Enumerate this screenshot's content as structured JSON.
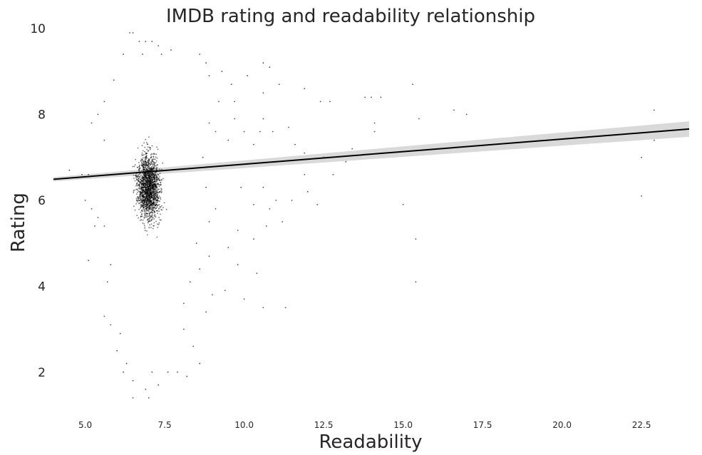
{
  "chart_data": {
    "type": "scatter",
    "title": "IMDB rating and readability relationship",
    "xlabel": "Readability",
    "ylabel": "Rating",
    "xlim": [
      4.0,
      24.0
    ],
    "ylim": [
      1.0,
      10.0
    ],
    "x_ticks": [
      "5.0",
      "7.5",
      "10.0",
      "12.5",
      "15.0",
      "17.5",
      "20.0",
      "22.5"
    ],
    "y_ticks": [
      "2",
      "4",
      "6",
      "8",
      "10"
    ],
    "grid": false,
    "point_color": "#000000",
    "band_color": "#d9d9d9",
    "regression": {
      "x": [
        4.0,
        24.0
      ],
      "y": [
        6.49,
        7.66
      ],
      "ci_half_width": [
        0.05,
        0.18
      ]
    },
    "points": [
      [
        6.4,
        9.9
      ],
      [
        6.5,
        9.9
      ],
      [
        6.7,
        9.7
      ],
      [
        6.9,
        9.7
      ],
      [
        7.1,
        9.7
      ],
      [
        7.3,
        9.6
      ],
      [
        6.2,
        9.4
      ],
      [
        6.8,
        9.4
      ],
      [
        7.4,
        9.4
      ],
      [
        7.7,
        9.5
      ],
      [
        8.6,
        9.4
      ],
      [
        8.8,
        9.2
      ],
      [
        5.9,
        8.8
      ],
      [
        8.9,
        8.9
      ],
      [
        9.3,
        9.0
      ],
      [
        9.6,
        8.7
      ],
      [
        10.1,
        8.9
      ],
      [
        10.6,
        9.2
      ],
      [
        10.8,
        9.1
      ],
      [
        11.1,
        8.7
      ],
      [
        11.9,
        8.6
      ],
      [
        12.7,
        8.3
      ],
      [
        13.8,
        8.4
      ],
      [
        14.0,
        8.4
      ],
      [
        14.3,
        8.4
      ],
      [
        15.3,
        8.7
      ],
      [
        14.1,
        7.8
      ],
      [
        14.1,
        7.6
      ],
      [
        15.5,
        7.9
      ],
      [
        13.4,
        7.2
      ],
      [
        13.2,
        6.9
      ],
      [
        12.5,
        7.0
      ],
      [
        11.9,
        7.1
      ],
      [
        11.6,
        7.3
      ],
      [
        11.4,
        7.7
      ],
      [
        10.9,
        7.6
      ],
      [
        10.6,
        7.9
      ],
      [
        10.5,
        7.6
      ],
      [
        10.3,
        7.3
      ],
      [
        10.0,
        7.6
      ],
      [
        9.7,
        7.9
      ],
      [
        9.5,
        7.4
      ],
      [
        9.1,
        7.6
      ],
      [
        8.9,
        7.8
      ],
      [
        5.4,
        8.0
      ],
      [
        5.2,
        7.8
      ],
      [
        5.6,
        8.3
      ],
      [
        5.6,
        7.4
      ],
      [
        4.5,
        6.7
      ],
      [
        4.9,
        6.6
      ],
      [
        5.1,
        6.6
      ],
      [
        5.0,
        6.0
      ],
      [
        5.2,
        5.8
      ],
      [
        5.4,
        5.6
      ],
      [
        5.3,
        5.4
      ],
      [
        5.6,
        5.4
      ],
      [
        5.1,
        4.6
      ],
      [
        5.8,
        4.5
      ],
      [
        5.7,
        4.1
      ],
      [
        5.6,
        3.3
      ],
      [
        5.8,
        3.1
      ],
      [
        6.1,
        2.9
      ],
      [
        6.0,
        2.5
      ],
      [
        6.3,
        2.2
      ],
      [
        6.2,
        2.0
      ],
      [
        6.5,
        1.8
      ],
      [
        6.9,
        1.6
      ],
      [
        7.0,
        1.4
      ],
      [
        7.3,
        1.7
      ],
      [
        6.5,
        1.4
      ],
      [
        7.1,
        2.0
      ],
      [
        7.6,
        2.0
      ],
      [
        7.9,
        2.0
      ],
      [
        8.2,
        1.9
      ],
      [
        8.4,
        2.6
      ],
      [
        8.1,
        3.0
      ],
      [
        8.8,
        3.4
      ],
      [
        9.0,
        3.8
      ],
      [
        9.4,
        3.9
      ],
      [
        10.0,
        3.7
      ],
      [
        10.6,
        3.5
      ],
      [
        11.3,
        3.5
      ],
      [
        10.4,
        4.3
      ],
      [
        9.8,
        4.5
      ],
      [
        9.5,
        4.9
      ],
      [
        8.9,
        4.7
      ],
      [
        8.5,
        5.0
      ],
      [
        9.8,
        5.3
      ],
      [
        10.3,
        5.1
      ],
      [
        10.7,
        5.4
      ],
      [
        11.2,
        5.5
      ],
      [
        10.8,
        5.8
      ],
      [
        10.3,
        5.9
      ],
      [
        9.9,
        6.3
      ],
      [
        10.6,
        6.3
      ],
      [
        11.0,
        6.0
      ],
      [
        11.5,
        6.0
      ],
      [
        12.0,
        6.2
      ],
      [
        12.3,
        5.9
      ],
      [
        11.9,
        6.6
      ],
      [
        12.8,
        6.6
      ],
      [
        15.0,
        5.9
      ],
      [
        15.4,
        5.1
      ],
      [
        15.4,
        4.1
      ],
      [
        22.5,
        6.1
      ],
      [
        22.5,
        7.0
      ],
      [
        22.9,
        7.4
      ],
      [
        22.9,
        8.1
      ],
      [
        17.0,
        8.0
      ],
      [
        16.6,
        8.1
      ],
      [
        12.4,
        8.3
      ],
      [
        10.6,
        8.5
      ],
      [
        9.7,
        8.3
      ],
      [
        9.2,
        8.3
      ],
      [
        8.7,
        7.0
      ],
      [
        8.8,
        6.3
      ],
      [
        9.1,
        5.8
      ],
      [
        8.9,
        5.5
      ],
      [
        8.6,
        4.4
      ],
      [
        8.3,
        4.1
      ],
      [
        8.1,
        3.6
      ],
      [
        8.6,
        2.2
      ]
    ]
  }
}
